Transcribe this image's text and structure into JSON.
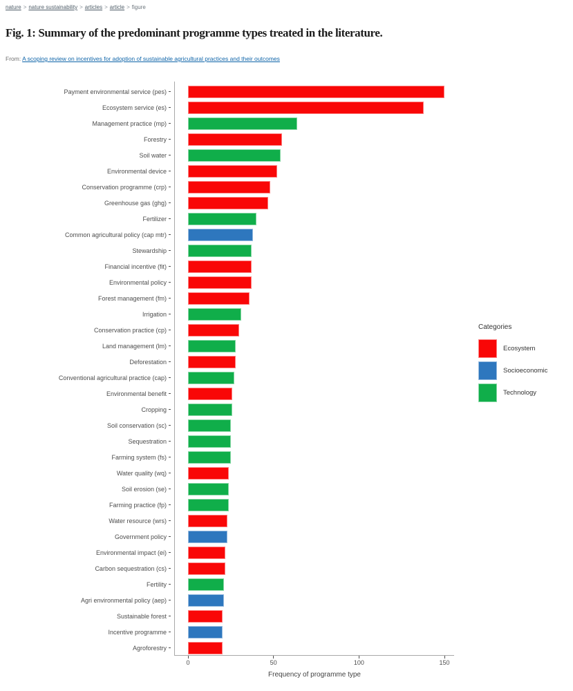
{
  "breadcrumb": {
    "separator": ">",
    "items": [
      {
        "label": "nature",
        "link": true
      },
      {
        "label": "nature sustainability",
        "link": true
      },
      {
        "label": "articles",
        "link": true
      },
      {
        "label": "article",
        "link": true
      },
      {
        "label": "figure",
        "link": false
      }
    ]
  },
  "header": {
    "title": "Fig. 1: Summary of the predominant programme types treated in the literature.",
    "from_label": "From:",
    "source_link": "A scoping review on incentives for adoption of sustainable agricultural practices and their outcomes"
  },
  "colors": {
    "ecosystem": "#f90707",
    "socioeconomic": "#2e77be",
    "technology": "#10ae4a",
    "link_blue": "#0c63a8",
    "axis_line": "#a8a8a8",
    "axis_text": "#4d4d4d"
  },
  "legend": {
    "title": "Categories",
    "items": [
      {
        "label": "Ecosystem",
        "category": "ecosystem"
      },
      {
        "label": "Socioeconomic",
        "category": "socioeconomic"
      },
      {
        "label": "Technology",
        "category": "technology"
      }
    ]
  },
  "chart_data": {
    "type": "bar",
    "orientation": "horizontal",
    "xlabel": "Frequency of programme type",
    "ylabel": "",
    "xlim": [
      0,
      150
    ],
    "xticks": [
      0,
      50,
      100,
      150
    ],
    "grid": false,
    "legend_position": "right",
    "bars": [
      {
        "label": "Payment environmental service (pes)",
        "value": 150,
        "category": "ecosystem"
      },
      {
        "label": "Ecosystem service (es)",
        "value": 138,
        "category": "ecosystem"
      },
      {
        "label": "Management practice (mp)",
        "value": 64,
        "category": "technology"
      },
      {
        "label": "Forestry",
        "value": 55,
        "category": "ecosystem"
      },
      {
        "label": "Soil water",
        "value": 54,
        "category": "technology"
      },
      {
        "label": "Environmental device",
        "value": 52,
        "category": "ecosystem"
      },
      {
        "label": "Conservation programme (crp)",
        "value": 48,
        "category": "ecosystem"
      },
      {
        "label": "Greenhouse gas (ghg)",
        "value": 47,
        "category": "ecosystem"
      },
      {
        "label": "Fertilizer",
        "value": 40,
        "category": "technology"
      },
      {
        "label": "Common agricultural policy (cap mtr)",
        "value": 38,
        "category": "socioeconomic"
      },
      {
        "label": "Stewardship",
        "value": 37,
        "category": "technology"
      },
      {
        "label": "Financial incentive (fit)",
        "value": 37,
        "category": "ecosystem"
      },
      {
        "label": "Environmental policy",
        "value": 37,
        "category": "ecosystem"
      },
      {
        "label": "Forest management (fm)",
        "value": 36,
        "category": "ecosystem"
      },
      {
        "label": "Irrigation",
        "value": 31,
        "category": "technology"
      },
      {
        "label": "Conservation practice (cp)",
        "value": 30,
        "category": "ecosystem"
      },
      {
        "label": "Land management (lm)",
        "value": 28,
        "category": "technology"
      },
      {
        "label": "Deforestation",
        "value": 28,
        "category": "ecosystem"
      },
      {
        "label": "Conventional agricultural practice (cap)",
        "value": 27,
        "category": "technology"
      },
      {
        "label": "Environmental benefit",
        "value": 26,
        "category": "ecosystem"
      },
      {
        "label": "Cropping",
        "value": 26,
        "category": "technology"
      },
      {
        "label": "Soil conservation (sc)",
        "value": 25,
        "category": "technology"
      },
      {
        "label": "Sequestration",
        "value": 25,
        "category": "technology"
      },
      {
        "label": "Farming system (fs)",
        "value": 25,
        "category": "technology"
      },
      {
        "label": "Water quality (wq)",
        "value": 24,
        "category": "ecosystem"
      },
      {
        "label": "Soil erosion (se)",
        "value": 24,
        "category": "technology"
      },
      {
        "label": "Farming practice (fp)",
        "value": 24,
        "category": "technology"
      },
      {
        "label": "Water resource (wrs)",
        "value": 23,
        "category": "ecosystem"
      },
      {
        "label": "Government policy",
        "value": 23,
        "category": "socioeconomic"
      },
      {
        "label": "Environmental impact (ei)",
        "value": 22,
        "category": "ecosystem"
      },
      {
        "label": "Carbon sequestration (cs)",
        "value": 22,
        "category": "ecosystem"
      },
      {
        "label": "Fertility",
        "value": 21,
        "category": "technology"
      },
      {
        "label": "Agri environmental policy (aep)",
        "value": 21,
        "category": "socioeconomic"
      },
      {
        "label": "Sustainable forest",
        "value": 20,
        "category": "ecosystem"
      },
      {
        "label": "Incentive programme",
        "value": 20,
        "category": "socioeconomic"
      },
      {
        "label": "Agroforestry",
        "value": 20,
        "category": "ecosystem"
      }
    ]
  }
}
